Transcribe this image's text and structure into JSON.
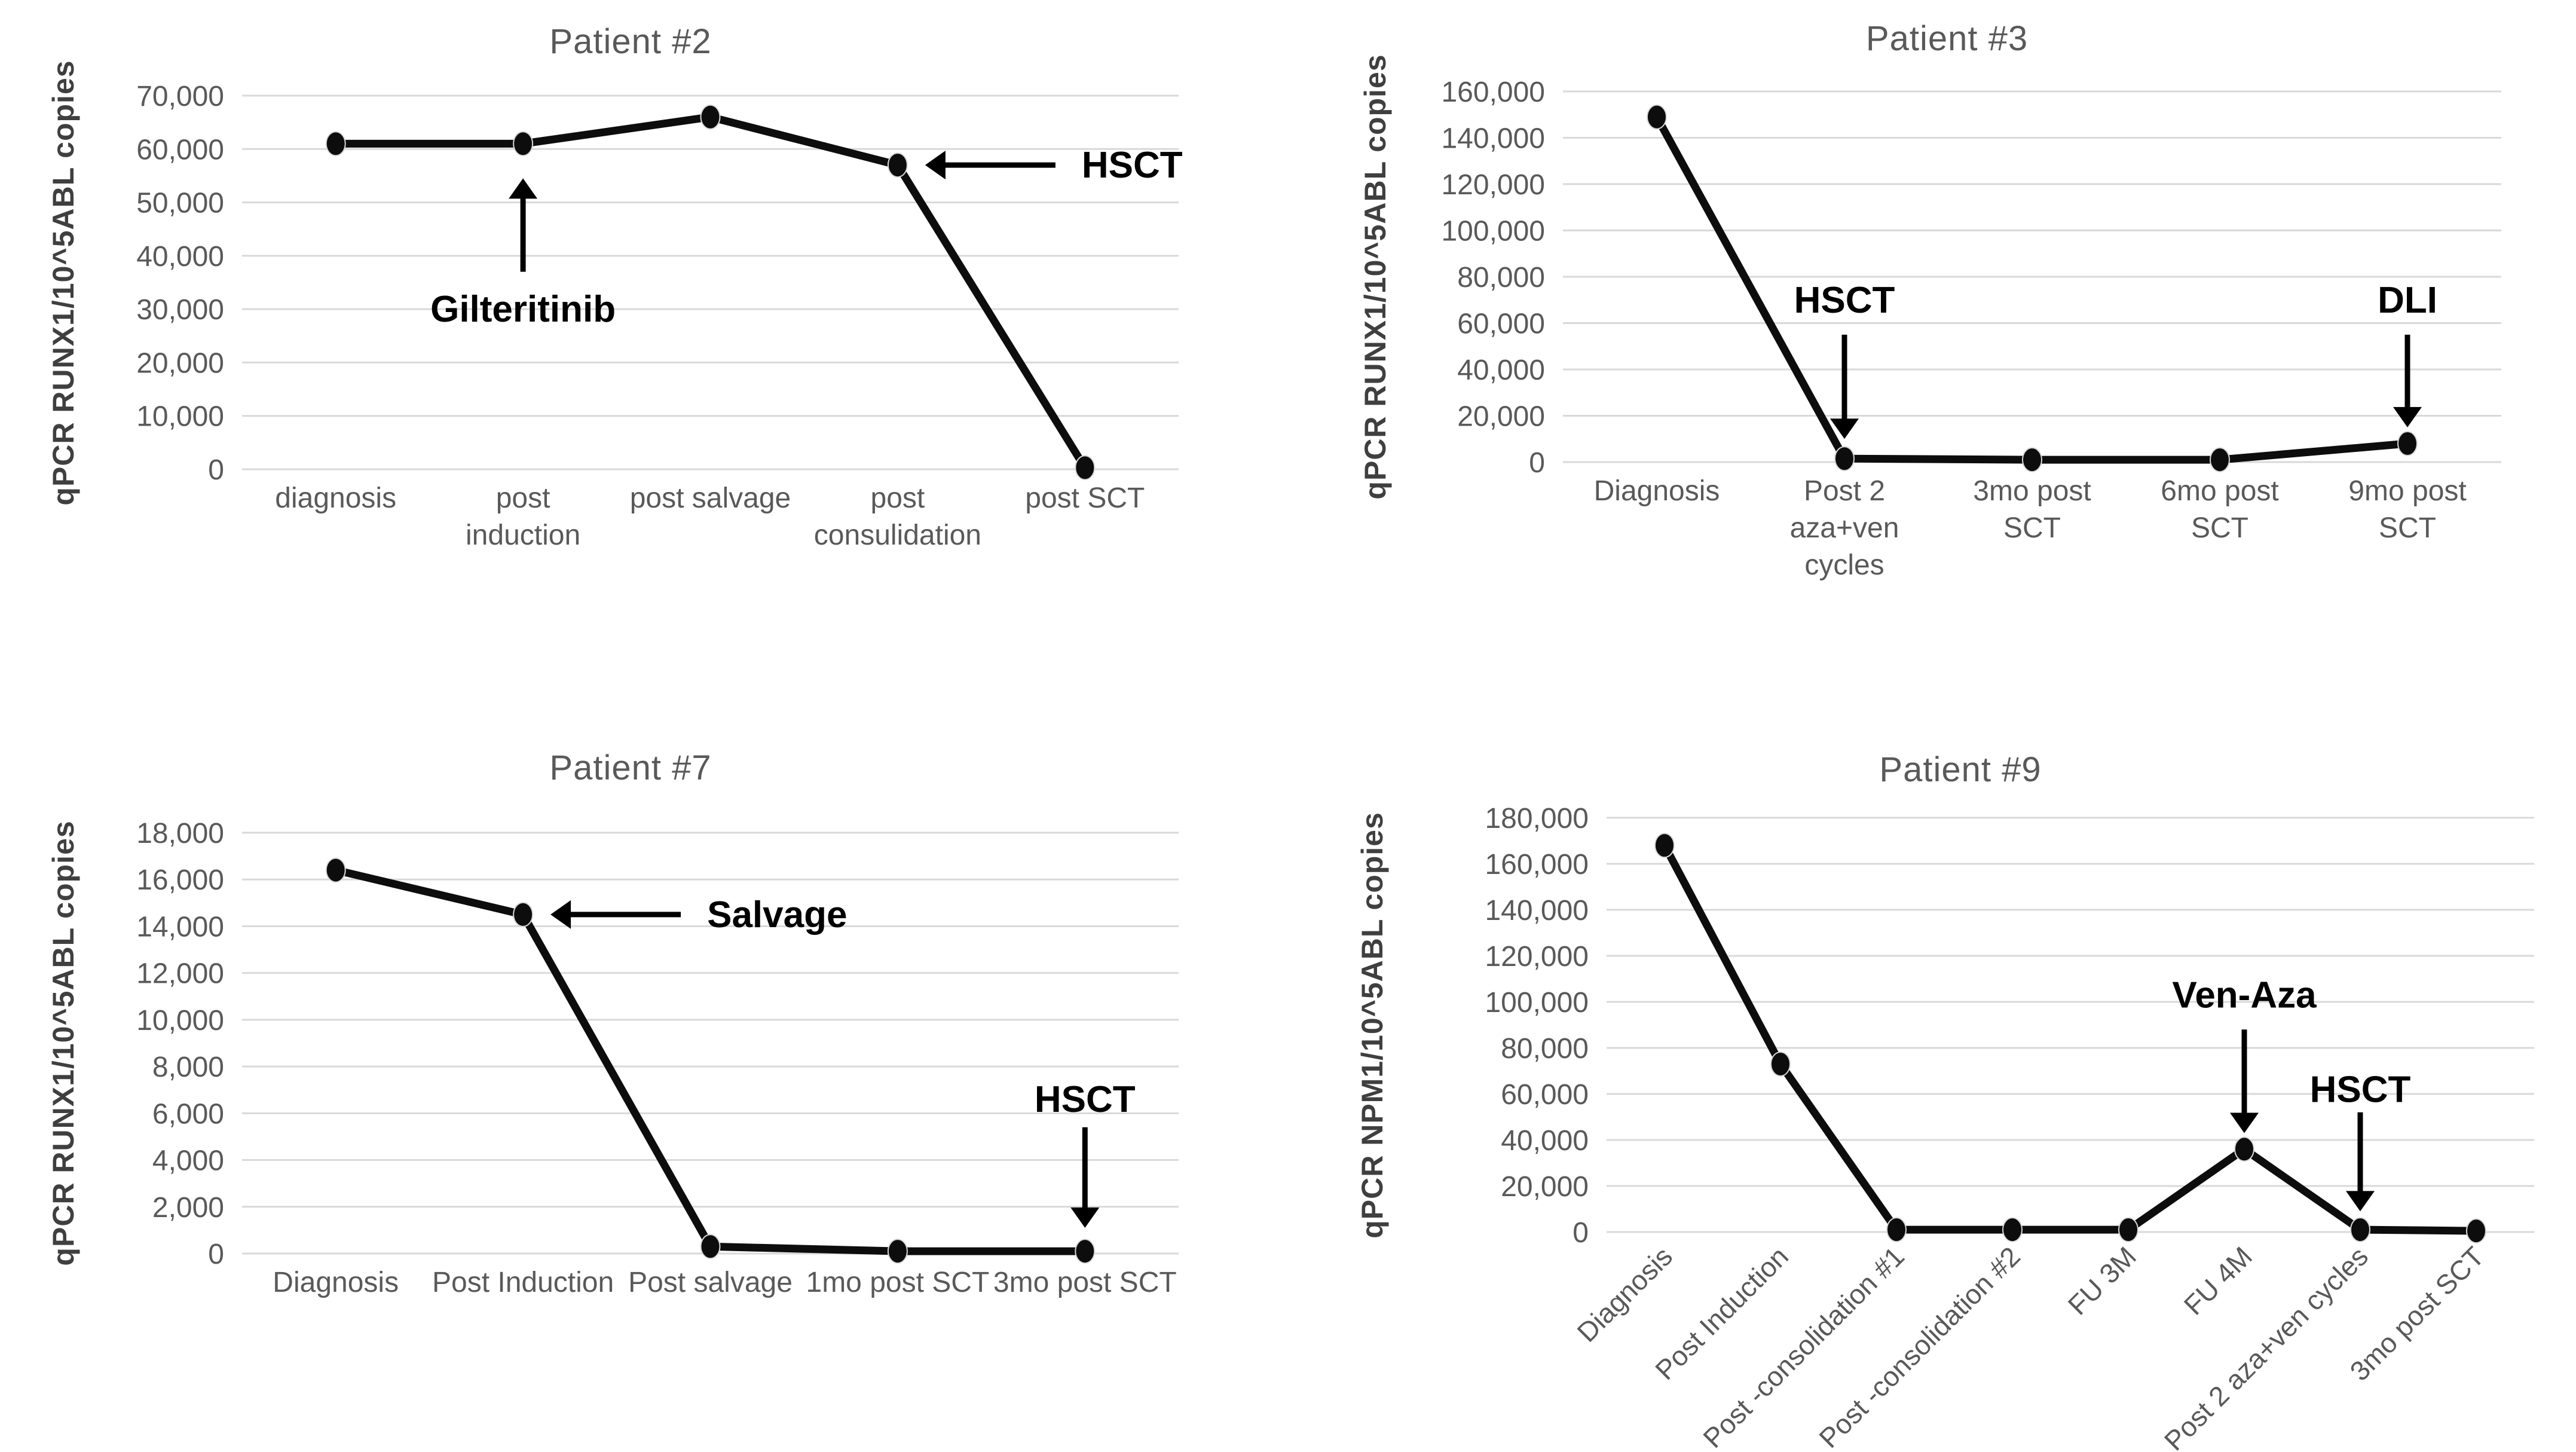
{
  "figure": {
    "background": "#ffffff",
    "style": {
      "line_color": "#0d0d0d",
      "grid_color": "#d9d9d9",
      "axis_text_color": "#595959",
      "title_color": "#595959",
      "annotation_color": "#000000"
    }
  },
  "chart_data": [
    {
      "id": "patient2",
      "type": "line",
      "title": "Patient #2",
      "ylabel": "qPCR RUNX1/10^5ABL copies",
      "xlabel": "",
      "ylim": [
        0,
        70000
      ],
      "ystep": 10000,
      "grid": true,
      "legend": "none",
      "categories": [
        "diagnosis",
        "post\ninduction",
        "post salvage",
        "post\nconsulidation",
        "post SCT"
      ],
      "values": [
        61000,
        61000,
        66000,
        57000,
        300
      ],
      "x_label_rotation": 0,
      "annotations": [
        {
          "label": "Gilteritinib",
          "kind": "up",
          "category_index": 1,
          "text_value": 30000,
          "from_value": 37000,
          "to_value": 54500
        },
        {
          "label": "HSCT",
          "kind": "left",
          "category_index": 3,
          "at_value": 57000
        }
      ]
    },
    {
      "id": "patient3",
      "type": "line",
      "title": "Patient #3",
      "ylabel": "qPCR RUNX1/10^5ABL copies",
      "xlabel": "",
      "ylim": [
        0,
        160000
      ],
      "ystep": 20000,
      "grid": true,
      "legend": "none",
      "categories": [
        "Diagnosis",
        "Post 2\naza+ven\ncycles",
        "3mo post\nSCT",
        "6mo post\nSCT",
        "9mo post\nSCT"
      ],
      "values": [
        149000,
        1500,
        1000,
        1000,
        8000
      ],
      "x_label_rotation": 0,
      "annotations": [
        {
          "label": "HSCT",
          "kind": "down",
          "category_index": 1,
          "text_value": 70000,
          "from_value": 55000,
          "to_value": 10000
        },
        {
          "label": "DLI",
          "kind": "down",
          "category_index": 4,
          "text_value": 70000,
          "from_value": 55000,
          "to_value": 15000
        }
      ]
    },
    {
      "id": "patient7",
      "type": "line",
      "title": "Patient #7",
      "ylabel": "qPCR RUNX1/10^5ABL copies",
      "xlabel": "",
      "ylim": [
        0,
        18000
      ],
      "ystep": 2000,
      "grid": true,
      "legend": "none",
      "categories": [
        "Diagnosis",
        "Post Induction",
        "Post salvage",
        "1mo post SCT",
        "3mo post SCT"
      ],
      "values": [
        16400,
        14500,
        300,
        100,
        100
      ],
      "x_label_rotation": 0,
      "annotations": [
        {
          "label": "Salvage",
          "kind": "left",
          "category_index": 1,
          "at_value": 14500
        },
        {
          "label": "HSCT",
          "kind": "down",
          "category_index": 4,
          "text_value": 6600,
          "from_value": 5400,
          "to_value": 1100
        }
      ]
    },
    {
      "id": "patient9",
      "type": "line",
      "title": "Patient #9",
      "ylabel": "qPCR NPM1/10^5ABL copies",
      "xlabel": "",
      "ylim": [
        0,
        180000
      ],
      "ystep": 20000,
      "grid": true,
      "legend": "none",
      "categories": [
        "Diagnosis",
        "Post Induction",
        "Post -consolidation #1",
        "Post -consolidation #2",
        "FU 3M",
        "FU 4M",
        "Post 2 aza+ven cycles",
        "3mo post SCT"
      ],
      "values": [
        168000,
        73000,
        1000,
        1000,
        1000,
        36000,
        1000,
        500
      ],
      "x_label_rotation": -45,
      "annotations": [
        {
          "label": "Ven-Aza",
          "kind": "down",
          "category_index": 5,
          "text_value": 103000,
          "from_value": 88000,
          "to_value": 43000
        },
        {
          "label": "HSCT",
          "kind": "down",
          "category_index": 6,
          "text_value": 62000,
          "from_value": 52000,
          "to_value": 9000
        }
      ]
    }
  ]
}
